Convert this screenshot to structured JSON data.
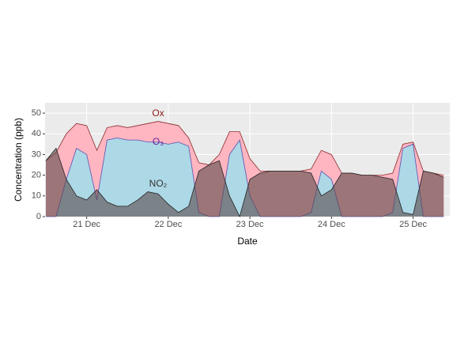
{
  "chart_data": {
    "type": "area",
    "x_label": "Date",
    "y_label": "Concentration (ppb)",
    "x": [
      20.5,
      20.625,
      20.75,
      20.875,
      21,
      21.125,
      21.25,
      21.375,
      21.5,
      21.625,
      21.75,
      21.875,
      22,
      22.125,
      22.25,
      22.375,
      22.5,
      22.625,
      22.75,
      22.875,
      23,
      23.125,
      23.25,
      23.375,
      23.5,
      23.625,
      23.75,
      23.875,
      24,
      24.125,
      24.25,
      24.375,
      24.5,
      24.625,
      24.75,
      24.875,
      25,
      25.125,
      25.25,
      25.375
    ],
    "series": [
      {
        "name": "Ox",
        "color": "#ffb6c1",
        "stroke": "#8b2a2a",
        "values": [
          27,
          31,
          40,
          45,
          44,
          32,
          43,
          44,
          43,
          44,
          45,
          46,
          45,
          44,
          38,
          26,
          25,
          30,
          41,
          41,
          28,
          22,
          22,
          22,
          22,
          22,
          23,
          32,
          30,
          21,
          21,
          20,
          20,
          20,
          21,
          35,
          36,
          22,
          21,
          20
        ]
      },
      {
        "name": "O₃",
        "color": "#add8e6",
        "stroke": "#5a4fb0",
        "values": [
          0,
          0,
          18,
          33,
          30,
          8,
          37,
          38,
          37,
          37,
          36,
          36,
          35,
          36,
          34,
          2,
          0,
          0,
          30,
          37,
          10,
          0,
          0,
          0,
          0,
          0,
          2,
          22,
          18,
          0,
          0,
          0,
          0,
          0,
          2,
          33,
          35,
          0,
          0,
          0
        ]
      },
      {
        "name": "NO₂",
        "color": "#5a4a4a",
        "stroke": "#222222",
        "values": [
          27,
          33,
          18,
          10,
          8,
          13,
          7,
          5,
          5,
          8,
          12,
          11,
          6,
          2,
          5,
          22,
          25,
          27,
          10,
          0,
          18,
          21,
          22,
          22,
          22,
          22,
          21,
          10,
          13,
          21,
          21,
          20,
          20,
          19,
          18,
          2,
          1,
          22,
          21,
          19
        ]
      }
    ],
    "label_colors": [
      "#8b1a1a",
      "#6a1a9a",
      "#333333"
    ],
    "xlim": [
      20.49,
      25.45
    ],
    "xticks": [
      {
        "value": 21,
        "label": "21 Dec"
      },
      {
        "value": 22,
        "label": "22 Dec"
      },
      {
        "value": 23,
        "label": "23 Dec"
      },
      {
        "value": 24,
        "label": "24 Dec"
      },
      {
        "value": 25,
        "label": "25 Dec"
      }
    ],
    "ylim": [
      0,
      55
    ],
    "yticks": [
      0,
      10,
      20,
      30,
      40,
      50
    ],
    "grid": true
  }
}
